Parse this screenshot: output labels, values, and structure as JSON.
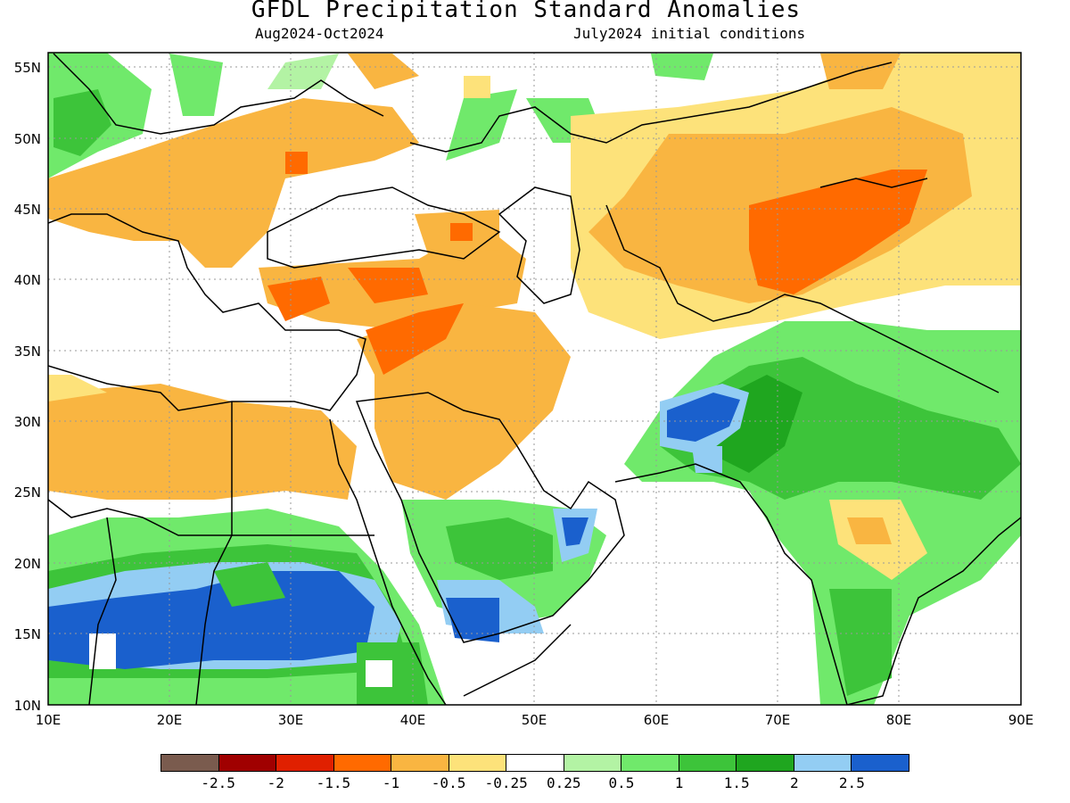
{
  "title": "GFDL Precipitation Standard Anomalies",
  "subtitle_left": "Aug2024-Oct2024",
  "subtitle_right": "July2024 initial conditions",
  "map": {
    "lon_range": [
      10,
      90
    ],
    "lat_range": [
      10,
      56
    ],
    "lon_ticks": [
      "10E",
      "20E",
      "30E",
      "40E",
      "50E",
      "60E",
      "70E",
      "80E",
      "90E"
    ],
    "lat_ticks": [
      "55N",
      "50N",
      "45N",
      "40N",
      "35N",
      "30N",
      "25N",
      "20N",
      "15N",
      "10N"
    ],
    "grid": "dotted",
    "colors": {
      "land_outline": "#000000",
      "frame": "#000000"
    }
  },
  "legend": {
    "colors": [
      "#7a5b4e",
      "#a00000",
      "#e02000",
      "#ff6a00",
      "#f9b541",
      "#fde27a",
      "#ffffff",
      "#b3f3a4",
      "#70e96b",
      "#3dc43a",
      "#1fa61f",
      "#93cdf3",
      "#1a60cd"
    ],
    "labels": [
      "-2.5",
      "-2",
      "-1.5",
      "-1",
      "-0.5",
      "-0.25",
      "0.25",
      "0.5",
      "1",
      "1.5",
      "2",
      "2.5"
    ]
  }
}
